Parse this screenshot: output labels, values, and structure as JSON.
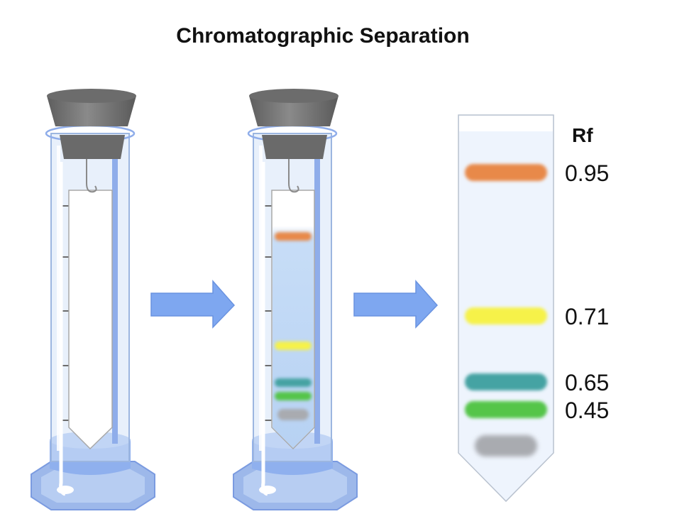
{
  "title": "Chromatographic Separation",
  "rf_header": "Rf",
  "bands": [
    {
      "label": "0.95",
      "color": "#e8894a"
    },
    {
      "label": "0.71",
      "color": "#f6f24a"
    },
    {
      "label": "0.65",
      "color": "#45a3a3"
    },
    {
      "label": "0.45",
      "color": "#55c54a"
    },
    {
      "label": "",
      "color": "#a9abb0"
    }
  ],
  "colors": {
    "cylinder_glass": "#d5e3f7",
    "cylinder_outline": "#9cb6e0",
    "solvent": "#8fb0ee",
    "base": "#9db8ea",
    "stopper": "#7d7d7d",
    "arrow": "#7ea7f0",
    "paper_wet": "#c4dcf6",
    "strip_bg": "#eef4fd"
  }
}
